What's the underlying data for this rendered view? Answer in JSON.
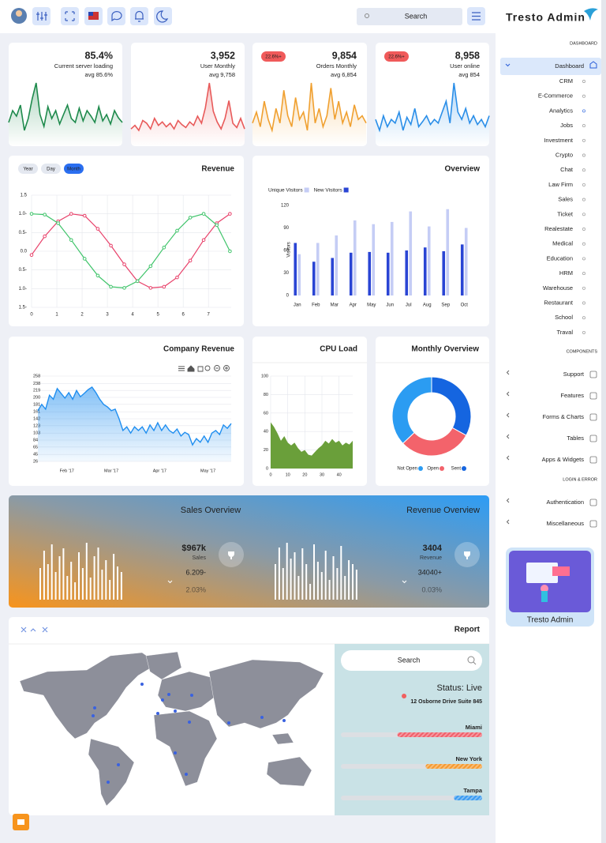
{
  "header": {
    "search_placeholder": "Search"
  },
  "sidebar": {
    "brand": "Tresto Admin",
    "sections": [
      {
        "title": "DASHBOARD",
        "items": [
          "Dashboard",
          "CRM",
          "E-Commerce",
          "Analytics",
          "Jobs",
          "Investment",
          "Crypto",
          "Chat",
          "Law Firm",
          "Sales",
          "Ticket",
          "Realestate",
          "Medical",
          "Education",
          "HRM",
          "Warehouse",
          "Restaurant",
          "School",
          "Traval"
        ]
      },
      {
        "title": "COMPONENTS",
        "items": [
          "Support",
          "Features",
          "Forms & Charts",
          "Tables",
          "Apps & Widgets"
        ]
      },
      {
        "title": "LOGIN & ERROR",
        "items": [
          "Authentication",
          "Miscellaneous"
        ]
      }
    ],
    "promo": "Tresto Admin"
  },
  "stats": [
    {
      "value": "85.4%",
      "label": "Current server loading",
      "avg": "avg 85.6%",
      "color": "#1e8a4c",
      "spark": [
        40,
        55,
        48,
        62,
        30,
        45,
        70,
        90,
        50,
        35,
        60,
        45,
        55,
        38,
        50,
        62,
        45,
        40,
        58,
        42,
        55,
        48,
        40,
        60,
        42,
        50,
        38,
        55,
        46,
        40
      ]
    },
    {
      "value": "3,952",
      "label": "User Monthly",
      "avg": "avg 9,758",
      "color": "#e85a5a",
      "spark": [
        30,
        35,
        28,
        42,
        38,
        30,
        45,
        35,
        40,
        33,
        38,
        30,
        42,
        36,
        32,
        40,
        35,
        48,
        38,
        60,
        95,
        55,
        40,
        30,
        45,
        70,
        38,
        32,
        45,
        30
      ]
    },
    {
      "value": "9,854",
      "label": "Orders Monthly",
      "avg": "avg 6,854",
      "badge": "22.6%+",
      "color": "#f0a030",
      "spark": [
        40,
        55,
        35,
        70,
        45,
        30,
        60,
        40,
        85,
        50,
        35,
        75,
        45,
        55,
        30,
        95,
        40,
        60,
        35,
        50,
        88,
        45,
        70,
        40,
        55,
        35,
        65,
        45,
        50,
        40
      ]
    },
    {
      "value": "8,958",
      "label": "User online",
      "avg": "avg 854",
      "badge": "22.6%+",
      "color": "#2a8ee8",
      "spark": [
        45,
        30,
        50,
        35,
        45,
        40,
        55,
        30,
        48,
        38,
        60,
        35,
        42,
        50,
        38,
        45,
        40,
        55,
        70,
        40,
        95,
        55,
        45,
        60,
        40,
        50,
        38,
        45,
        35,
        50
      ]
    }
  ],
  "revenue": {
    "type": "line",
    "title": "Revenue",
    "tabs": [
      "Year",
      "Day",
      "Month"
    ],
    "grid": true,
    "x": [
      0,
      0.52,
      1.05,
      1.57,
      2.1,
      2.62,
      3.14,
      3.67,
      4.19,
      4.71,
      5.24,
      5.76,
      6.28,
      6.81,
      7.33,
      7.85
    ],
    "xlim": [
      0,
      7.9
    ],
    "xticks": [
      0,
      1,
      2,
      3,
      4,
      5,
      6,
      7
    ],
    "ylim": [
      -1.5,
      1.5
    ],
    "yticks": [
      1.5,
      {
        "value": 1,
        "label": "1.0-"
      },
      {
        "value": 0.5,
        "label": "0.5-"
      },
      {
        "value": 0,
        "label": "0.0"
      },
      {
        "value": -0.5,
        "label": "0.5-"
      },
      {
        "value": -1,
        "label": "1.0-"
      },
      {
        "value": -1.5,
        "label": "1.5-"
      }
    ],
    "series": [
      {
        "color": "#e8416a",
        "values": [
          -0.1,
          0.4,
          0.8,
          1.0,
          0.95,
          0.6,
          0.15,
          -0.35,
          -0.8,
          -0.98,
          -0.95,
          -0.7,
          -0.25,
          0.3,
          0.75,
          1.0
        ]
      },
      {
        "color": "#3fc46a",
        "values": [
          1.0,
          0.98,
          0.75,
          0.3,
          -0.2,
          -0.65,
          -0.95,
          -0.98,
          -0.8,
          -0.4,
          0.1,
          0.55,
          0.9,
          1.0,
          0.7,
          0.0
        ]
      }
    ]
  },
  "overview": {
    "type": "bar",
    "title": "Overview",
    "ylabel": "Visitors",
    "categories": [
      "Jan",
      "Feb",
      "Mar",
      "Apr",
      "May",
      "Jun",
      "Jul",
      "Aug",
      "Sep",
      "Oct"
    ],
    "ylim": [
      0,
      120
    ],
    "yticks": [
      0,
      30,
      60,
      90,
      120
    ],
    "series": [
      {
        "name": "Unique Visitors",
        "color": "#c5cdf5",
        "values": [
          55,
          70,
          80,
          100,
          95,
          98,
          112,
          92,
          115,
          90
        ]
      },
      {
        "name": "New Visitors",
        "color": "#2a45d4",
        "values": [
          70,
          45,
          50,
          57,
          58,
          57,
          60,
          64,
          59,
          68
        ]
      }
    ]
  },
  "company_revenue": {
    "type": "area",
    "title": "Company Revenue",
    "color": "#1f8ef0",
    "grid": true,
    "values": [
      164,
      181,
      168,
      206,
      195,
      224,
      211,
      198,
      213,
      195,
      219,
      202,
      211,
      221,
      228,
      213,
      195,
      181,
      174,
      164,
      168,
      142,
      110,
      120,
      103,
      120,
      110,
      120,
      103,
      125,
      110,
      131,
      110,
      125,
      110,
      103,
      114,
      95,
      105,
      99,
      71,
      88,
      78,
      95,
      78,
      103,
      110,
      99,
      125,
      116,
      129
    ],
    "xlim": [
      0,
      50
    ],
    "xticks": [
      {
        "value": 7.5,
        "label": "Feb '17"
      },
      {
        "value": 19,
        "label": "Mar '17"
      },
      {
        "value": 31.5,
        "label": "Apr '17"
      },
      {
        "value": 44,
        "label": "May '17"
      }
    ],
    "ylim": [
      26,
      258
    ],
    "yticks": [
      26,
      45,
      65,
      84,
      103,
      123,
      142,
      161,
      181,
      200,
      219,
      238,
      258
    ]
  },
  "cpu_load": {
    "type": "area",
    "title": "CPU Load",
    "color": "#6a9f3a",
    "grid": true,
    "x": [
      0,
      2,
      4,
      6,
      8,
      10,
      12,
      14,
      16,
      18,
      20,
      22,
      24,
      26,
      28,
      30,
      32,
      34,
      36,
      38,
      40,
      42,
      44,
      46,
      48
    ],
    "values": [
      50,
      45,
      38,
      30,
      35,
      28,
      25,
      28,
      22,
      18,
      20,
      15,
      14,
      18,
      22,
      25,
      30,
      27,
      32,
      28,
      30,
      25,
      28,
      26,
      30
    ],
    "xlim": [
      0,
      48
    ],
    "xticks": [
      0,
      10,
      20,
      30,
      40
    ],
    "ylim": [
      0,
      100
    ],
    "yticks": [
      0,
      20,
      40,
      60,
      80,
      100
    ]
  },
  "monthly_overview": {
    "type": "pie",
    "title": "Monthly Overview",
    "categories": [
      "Not Open",
      "Open",
      "Sent"
    ],
    "values": [
      37,
      30,
      33
    ],
    "colors": [
      "#2b9cf2",
      "#f3636b",
      "#1565e0"
    ]
  },
  "banner": {
    "sales": {
      "title": "Sales Overview",
      "value": "$967k",
      "label": "Sales",
      "change": "6.209-",
      "percent": "2.03%",
      "bars": [
        40,
        62,
        45,
        70,
        35,
        55,
        65,
        30,
        48,
        22,
        60,
        40,
        72,
        28,
        55,
        66,
        38,
        50,
        25,
        58,
        42,
        35
      ]
    },
    "revenue": {
      "title": "Revenue Overview",
      "value": "3404",
      "label": "Revenue",
      "change": "34040+",
      "percent": "0.03%",
      "bars": [
        45,
        66,
        40,
        72,
        52,
        60,
        30,
        65,
        45,
        20,
        70,
        48,
        35,
        62,
        25,
        55,
        40,
        68,
        30,
        50,
        45,
        38
      ]
    }
  },
  "report": {
    "title": "Report",
    "search_placeholder": "Search",
    "status": "Status: Live",
    "address": "12 Osborne Drive Suite 845",
    "cities": [
      {
        "name": "Miami",
        "value": 60,
        "color": "#f0606b"
      },
      {
        "name": "New York",
        "value": 40,
        "color": "#f59a30"
      },
      {
        "name": "Tampa",
        "value": 20,
        "color": "#3a9bf0"
      }
    ]
  }
}
